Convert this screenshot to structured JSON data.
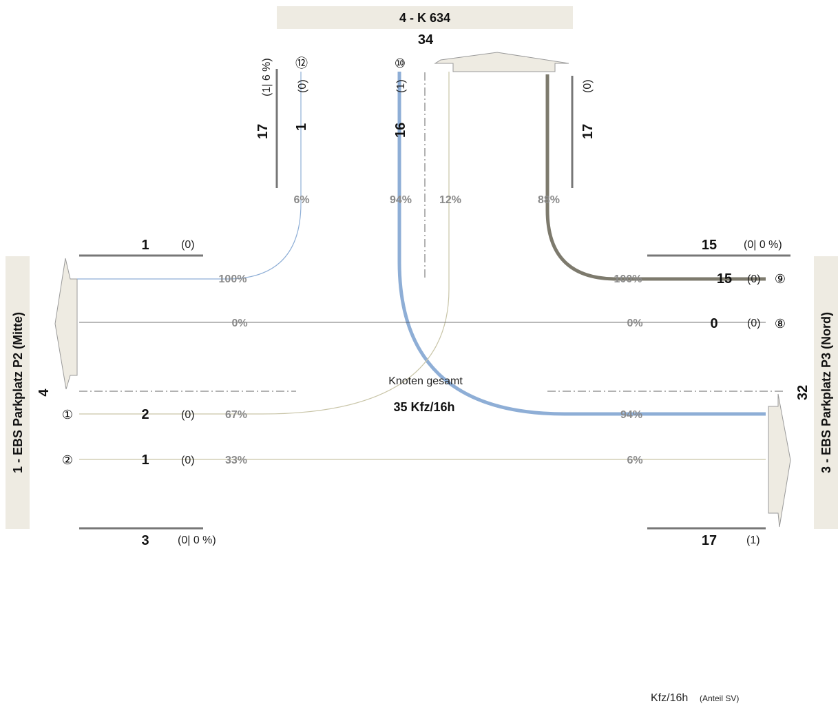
{
  "approaches": {
    "north": {
      "title": "4 - K 634",
      "total": "34",
      "in": "17",
      "in_sv": "(1|  6 %)",
      "out": "17",
      "out_sv": "(0)"
    },
    "west": {
      "title": "1 - EBS Parkplatz P2 (Mitte)",
      "total": "4"
    },
    "east": {
      "title": "3 - EBS Parkplatz P3 (Nord)",
      "total": "32"
    }
  },
  "streams": {
    "s12": {
      "num": "⑫",
      "vol": "1",
      "sv": "(0)"
    },
    "s10": {
      "num": "⑩",
      "vol": "16",
      "sv": "(1)"
    },
    "s9": {
      "num": "⑨",
      "vol": "15",
      "sv": "(0)"
    },
    "s8": {
      "num": "⑧",
      "vol": "0",
      "sv": "(0)"
    },
    "s1": {
      "num": "①",
      "vol": "2",
      "sv": "(0)"
    },
    "s2": {
      "num": "②",
      "vol": "1",
      "sv": "(0)"
    }
  },
  "percentages": {
    "n_left": "6%",
    "n_mid": "94%",
    "n_right_a": "12%",
    "n_right_b": "88%",
    "w_top": "100%",
    "w_mid": "0%",
    "w_s1": "67%",
    "w_s2": "33%",
    "e_top": "100%",
    "e_mid": "0%",
    "e_s1": "94%",
    "e_s2": "6%"
  },
  "sections": {
    "west_top": {
      "vol": "1",
      "sv": "(0)"
    },
    "west_bottom": {
      "vol": "3",
      "sv": "(0|   0 %)"
    },
    "east_top": {
      "vol": "15",
      "sv": "(0|   0 %)"
    },
    "east_bottom": {
      "vol": "17",
      "sv": "(1)"
    }
  },
  "center": {
    "label": "Knoten gesamt",
    "total": "35 Kfz/16h"
  },
  "legend": {
    "unit": "Kfz/16h",
    "note": "(Anteil SV)"
  },
  "colors": {
    "blue": "#8eaed6",
    "olive": "#7d7a6d",
    "beige": "#c9c5a8",
    "panel": "#eeebe2"
  }
}
